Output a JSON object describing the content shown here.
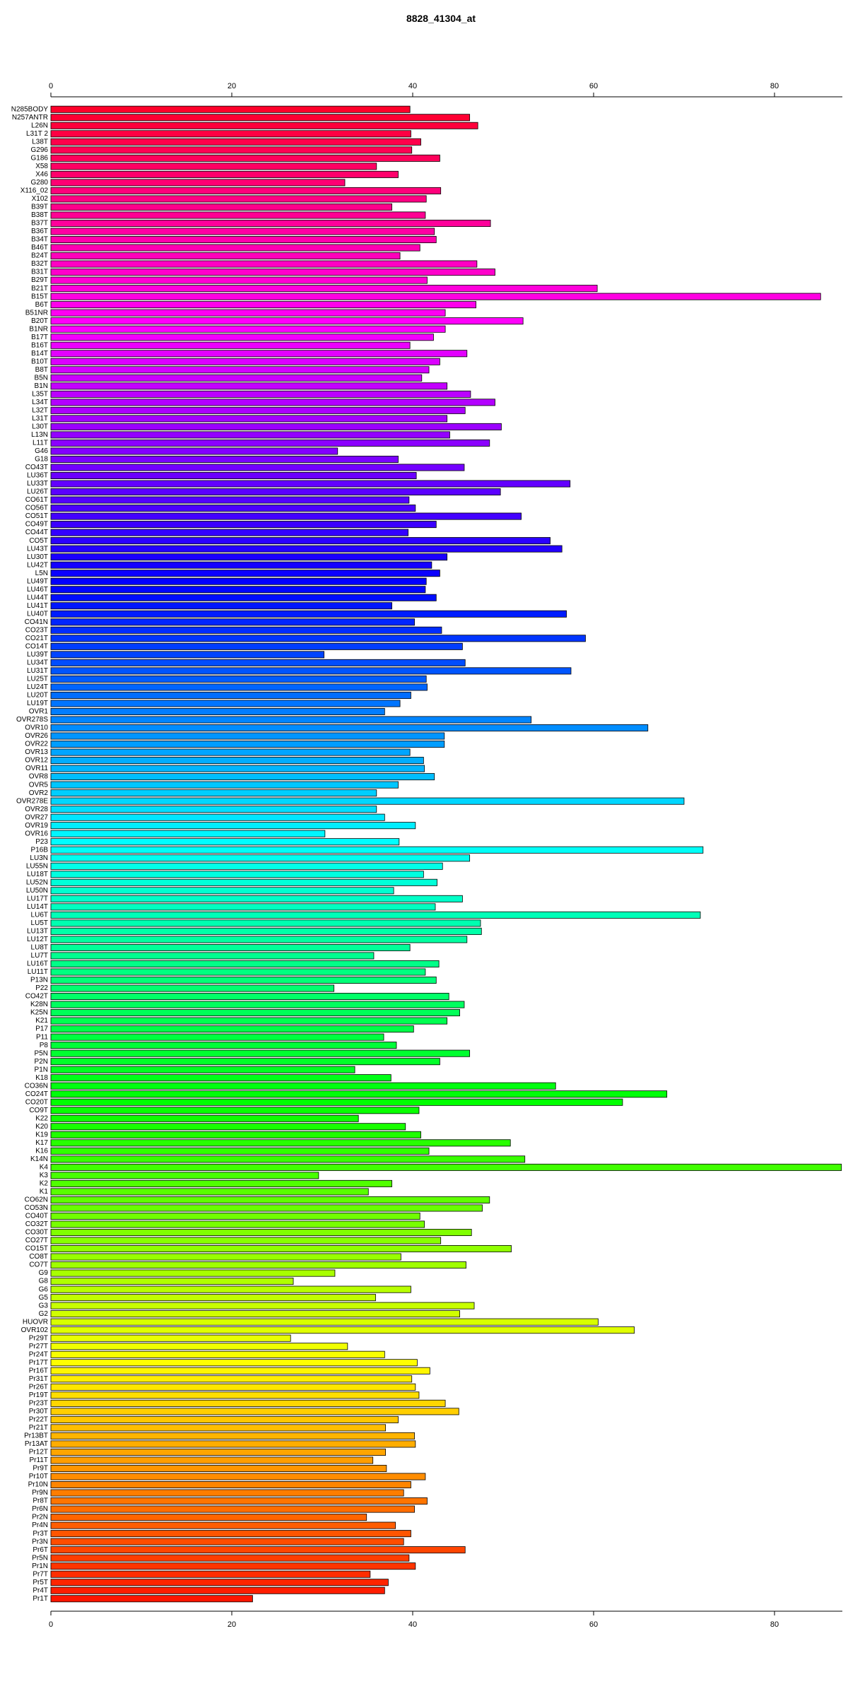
{
  "chart_data": {
    "type": "hbar",
    "title": "8828_41304_at",
    "categories": [
      "N285BODY",
      "N257ANTR",
      "L26N",
      "L31T 2",
      "L38T",
      "G296",
      "G186",
      "X58",
      "X46",
      "G280",
      "X116_02",
      "X102",
      "B39T",
      "B38T",
      "B37T",
      "B36T",
      "B34T",
      "B46T",
      "B24T",
      "B32T",
      "B31T",
      "B29T",
      "B21T",
      "B15T",
      "B6T",
      "B51NR",
      "B20T",
      "B1NR",
      "B17T",
      "B16T",
      "B14T",
      "B10T",
      "B8T",
      "B5N",
      "B1N",
      "L35T",
      "L34T",
      "L32T",
      "L31T",
      "L30T",
      "L13N",
      "L11T",
      "G46",
      "G18",
      "CO43T",
      "LU36T",
      "LU33T",
      "LU26T",
      "CO61T",
      "CO56T",
      "CO51T",
      "CO49T",
      "CO44T",
      "CO5T",
      "LU43T",
      "LU30T",
      "LU42T",
      "L5N",
      "LU49T",
      "LU46T",
      "LU44T",
      "LU41T",
      "LU40T",
      "CO41N",
      "CO23T",
      "CO21T",
      "CO14T",
      "LU39T",
      "LU34T",
      "LU31T",
      "LU25T",
      "LU24T",
      "LU20T",
      "LU19T",
      "OVR1",
      "OVR278S",
      "OVR10",
      "OVR26",
      "OVR22",
      "OVR13",
      "OVR12",
      "OVR11",
      "OVR8",
      "OVR5",
      "OVR2",
      "OVR278E",
      "OVR28",
      "OVR27",
      "OVR19",
      "OVR16",
      "P23",
      "P16B",
      "LU3N",
      "LU55N",
      "LU18T",
      "LU52N",
      "LU50N",
      "LU17T",
      "LU14T",
      "LU6T",
      "LU5T",
      "LU13T",
      "LU12T",
      "LU8T",
      "LU7T",
      "LU16T",
      "LU11T",
      "P13N",
      "P22",
      "CO42T",
      "K28N",
      "K25N",
      "K21",
      "P17",
      "P11",
      "P8",
      "P5N",
      "P2N",
      "P1N",
      "K18",
      "CO36N",
      "CO24T",
      "CO20T",
      "CO9T",
      "K22",
      "K20",
      "K19",
      "K17",
      "K16",
      "K14N",
      "K4",
      "K3",
      "K2",
      "K1",
      "CO62N",
      "CO53N",
      "CO40T",
      "CO32T",
      "CO30T",
      "CO27T",
      "CO15T",
      "CO8T",
      "CO7T",
      "G9",
      "G8",
      "G6",
      "G5",
      "G3",
      "G2",
      "HUOVR",
      "OVR102",
      "Pr29T",
      "Pr27T",
      "Pr24T",
      "Pr17T",
      "Pr16T",
      "Pr31T",
      "Pr26T",
      "Pr19T",
      "Pr23T",
      "Pr30T",
      "Pr22T",
      "Pr21T",
      "Pr13BT",
      "Pr13AT",
      "Pr12T",
      "Pr11T",
      "Pr9T",
      "Pr10T",
      "Pr10N",
      "Pr9N",
      "Pr8T",
      "Pr6N",
      "Pr2N",
      "Pr4N",
      "Pr3T",
      "Pr3N",
      "Pr6T",
      "Pr5N",
      "Pr1N",
      "Pr7T",
      "Pr5T",
      "Pr4T",
      "Pr1T"
    ],
    "values": [
      39.7,
      46.3,
      47.2,
      39.8,
      40.9,
      39.9,
      43.0,
      36.0,
      38.4,
      32.5,
      43.1,
      41.5,
      37.7,
      41.4,
      48.6,
      42.4,
      42.6,
      40.8,
      38.6,
      47.1,
      49.1,
      41.6,
      60.4,
      85.1,
      47.0,
      43.6,
      52.2,
      43.6,
      42.3,
      39.7,
      46.0,
      43.0,
      41.8,
      41.0,
      43.8,
      46.4,
      49.1,
      45.8,
      43.8,
      49.8,
      44.1,
      48.5,
      31.7,
      38.4,
      45.7,
      40.4,
      57.4,
      49.7,
      39.6,
      40.3,
      52.0,
      42.6,
      39.5,
      55.2,
      56.5,
      43.8,
      42.1,
      43.0,
      41.5,
      41.4,
      42.6,
      37.7,
      57.0,
      40.2,
      43.2,
      59.1,
      45.5,
      30.2,
      45.8,
      57.5,
      41.5,
      41.6,
      39.8,
      38.6,
      36.9,
      53.1,
      66.0,
      43.5,
      43.5,
      39.7,
      41.2,
      41.3,
      42.4,
      38.4,
      36.0,
      70.0,
      36.0,
      36.9,
      40.3,
      30.3,
      38.5,
      72.1,
      46.3,
      43.3,
      41.2,
      42.7,
      37.9,
      45.5,
      42.5,
      71.8,
      47.5,
      47.6,
      46.0,
      39.7,
      35.7,
      42.9,
      41.4,
      42.6,
      31.3,
      44.0,
      45.7,
      45.2,
      43.8,
      40.1,
      36.8,
      38.2,
      46.3,
      43.0,
      33.6,
      37.6,
      55.8,
      68.1,
      63.2,
      40.7,
      34.0,
      39.2,
      40.9,
      50.8,
      41.8,
      52.4,
      87.4,
      29.6,
      37.7,
      35.1,
      48.5,
      47.7,
      40.8,
      41.3,
      46.5,
      43.1,
      50.9,
      38.7,
      45.9,
      31.4,
      26.8,
      39.8,
      35.9,
      46.8,
      45.2,
      60.5,
      64.5,
      26.5,
      32.8,
      36.9,
      40.5,
      41.9,
      39.9,
      40.3,
      40.7,
      43.6,
      45.1,
      38.4,
      37.0,
      40.2,
      40.3,
      37.0,
      35.6,
      37.1,
      41.4,
      39.8,
      39.0,
      41.6,
      40.2,
      34.9,
      38.1,
      39.8,
      39.0,
      45.8,
      39.6,
      40.3,
      35.3,
      37.3,
      36.9,
      22.3
    ],
    "xlim": [
      0,
      87.5
    ],
    "xticks": [
      0,
      20,
      40,
      60,
      80
    ]
  }
}
